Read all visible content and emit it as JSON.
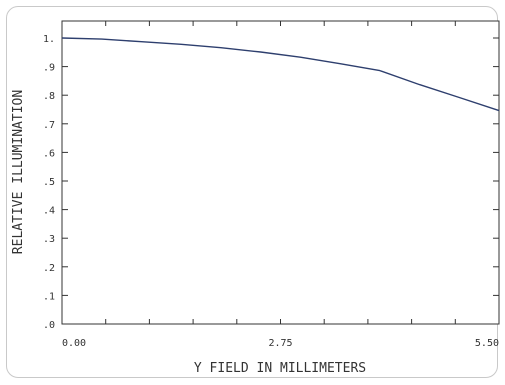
{
  "chart_data": {
    "type": "line",
    "title": "",
    "xlabel": "Y FIELD IN MILLIMETERS",
    "ylabel": "RELATIVE ILLUMINATION",
    "xlim": [
      0,
      5.5
    ],
    "ylim": [
      0,
      1.05
    ],
    "x_tick_labels": [
      "0.00",
      "2.75",
      "5.50"
    ],
    "x_tick_values": [
      0,
      2.75,
      5.5
    ],
    "y_tick_labels": [
      ".0",
      ".1",
      ".2",
      ".3",
      ".4",
      ".5",
      ".6",
      ".7",
      ".8",
      ".9",
      "1."
    ],
    "y_tick_values": [
      0,
      0.1,
      0.2,
      0.3,
      0.4,
      0.5,
      0.6,
      0.7,
      0.8,
      0.9,
      1.0
    ],
    "grid": false,
    "series": [
      {
        "color": "#2e3f6e",
        "x": [
          0,
          0.5,
          1.0,
          1.5,
          2.0,
          2.5,
          3.0,
          3.5,
          4.0,
          4.5,
          5.0,
          5.5
        ],
        "y": [
          1.0,
          0.996,
          0.987,
          0.978,
          0.966,
          0.951,
          0.933,
          0.91,
          0.886,
          0.837,
          0.792,
          0.746
        ]
      }
    ]
  }
}
